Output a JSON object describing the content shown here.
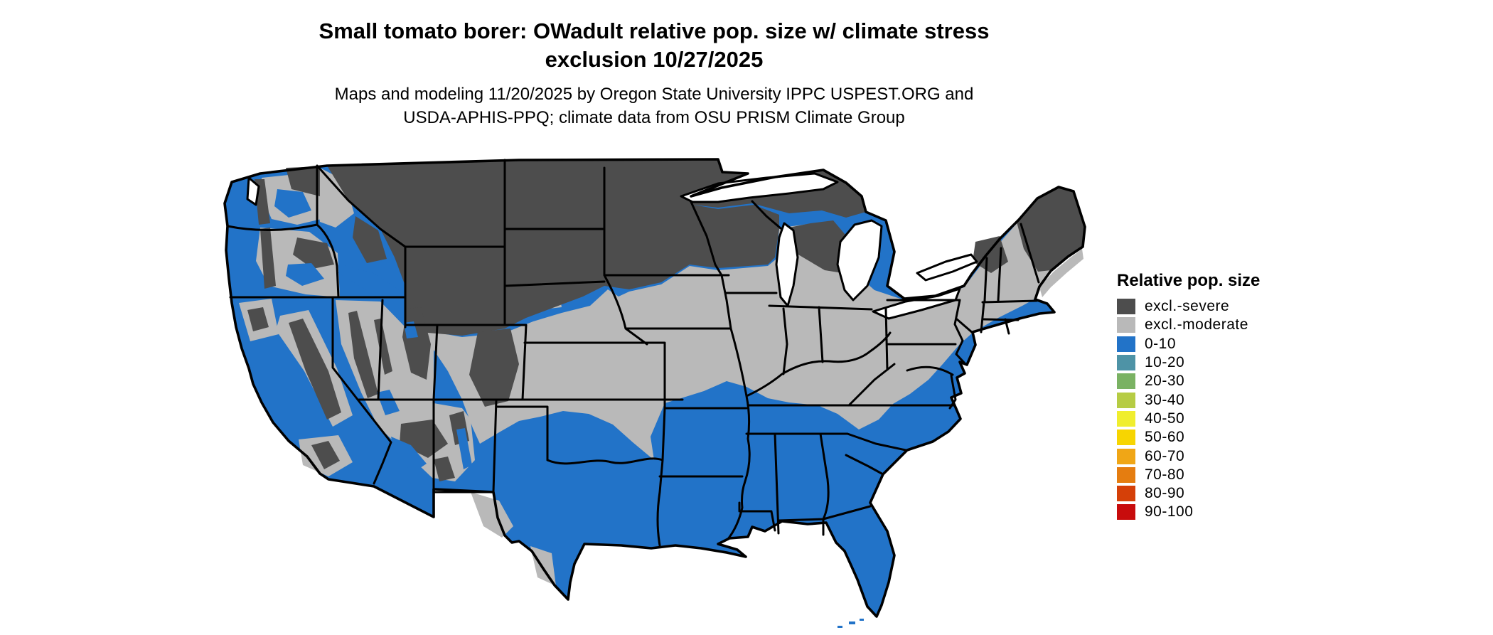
{
  "title": {
    "line1": "Small tomato borer: OWadult relative pop. size w/ climate stress",
    "line2": "exclusion 10/27/2025"
  },
  "subtitle": {
    "line1": "Maps and modeling 11/20/2025 by Oregon State University IPPC USPEST.ORG and",
    "line2": "USDA-APHIS-PPQ; climate data from OSU PRISM Climate Group"
  },
  "legend": {
    "title": "Relative pop. size",
    "items": [
      {
        "label": "excl.-severe",
        "color": "#4d4d4d"
      },
      {
        "label": "excl.-moderate",
        "color": "#b9b9b9"
      },
      {
        "label": "0-10",
        "color": "#2273c8"
      },
      {
        "label": "10-20",
        "color": "#4e93a6"
      },
      {
        "label": "20-30",
        "color": "#7ab263"
      },
      {
        "label": "30-40",
        "color": "#b6cc44"
      },
      {
        "label": "40-50",
        "color": "#f0ee2e"
      },
      {
        "label": "50-60",
        "color": "#f7d501"
      },
      {
        "label": "60-70",
        "color": "#f0a616"
      },
      {
        "label": "70-80",
        "color": "#e57d10"
      },
      {
        "label": "80-90",
        "color": "#d54008"
      },
      {
        "label": "90-100",
        "color": "#c80c0c"
      }
    ]
  },
  "map": {
    "name": "contiguous-united-states",
    "visible_classes": [
      "excl.-severe",
      "excl.-moderate",
      "0-10"
    ],
    "colors": {
      "excluded_severe": "#4d4d4d",
      "excluded_moderate": "#b9b9b9",
      "pop_0_10": "#2273c8",
      "water": "#ffffff",
      "border": "#000000"
    }
  }
}
